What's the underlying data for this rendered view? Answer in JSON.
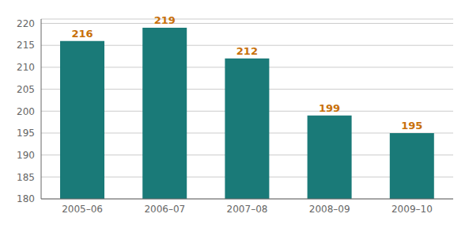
{
  "chart_data": {
    "type": "bar",
    "categories": [
      "2005–06",
      "2006–07",
      "2007–08",
      "2008–09",
      "2009–10"
    ],
    "values": [
      216,
      219,
      212,
      199,
      195
    ],
    "color": "#1a7a78",
    "ylim": [
      180,
      221
    ],
    "yticks": [
      180,
      185,
      190,
      195,
      200,
      205,
      210,
      215,
      220
    ],
    "grid": true,
    "data_labels": true
  }
}
